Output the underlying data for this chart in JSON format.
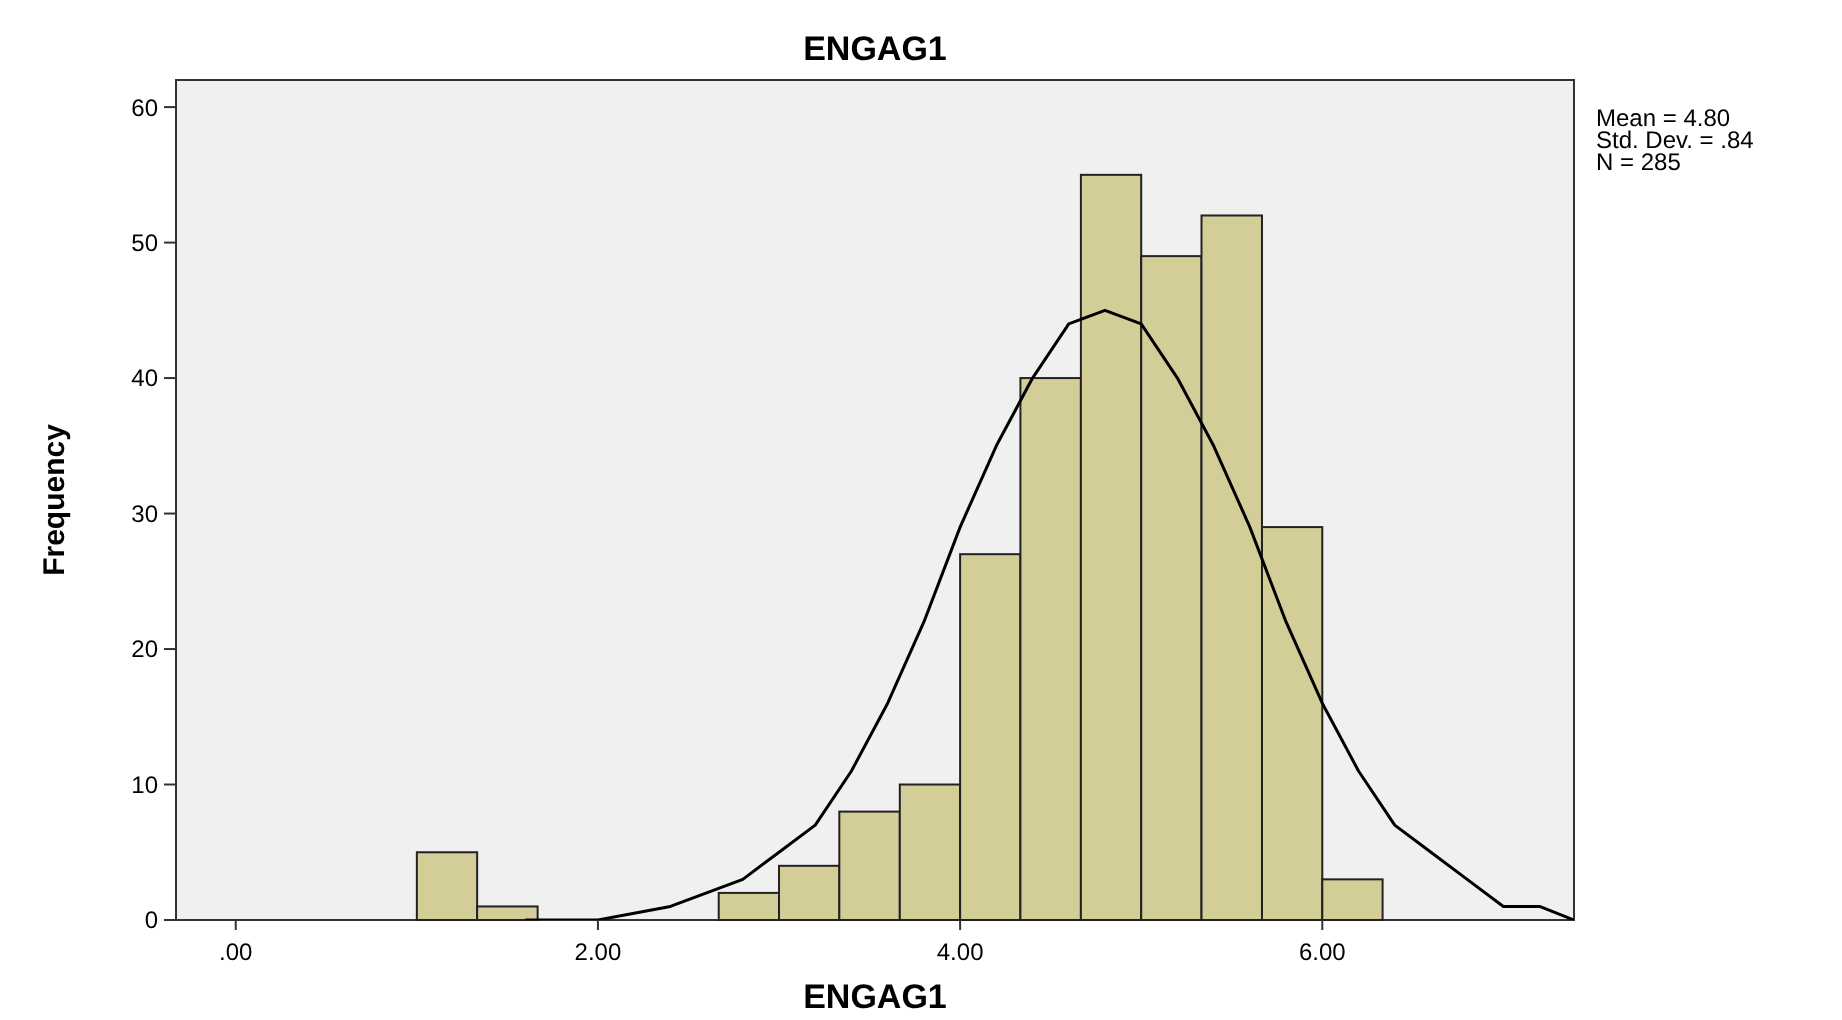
{
  "chart_data": {
    "type": "histogram",
    "title": "ENGAG1",
    "xlabel": "ENGAG1",
    "ylabel": "Frequency",
    "bins": [
      1.0,
      1.333,
      1.667,
      2.0,
      2.333,
      2.667,
      3.0,
      3.333,
      3.667,
      4.0,
      4.333,
      4.667,
      5.0,
      5.333,
      5.667,
      6.0,
      6.333
    ],
    "values": [
      5,
      1,
      0,
      0,
      0,
      2,
      4,
      8,
      10,
      27,
      40,
      55,
      49,
      52,
      29,
      3
    ],
    "color": "#d3ce98",
    "series": [
      {
        "type": "line",
        "color": "#000000",
        "x": [
          1.6,
          2.0,
          2.4,
          2.8,
          3.0,
          3.2,
          3.4,
          3.6,
          3.8,
          4.0,
          4.2,
          4.4,
          4.6,
          4.8,
          5.0,
          5.2,
          5.4,
          5.6,
          5.8,
          6.0,
          6.2,
          6.4,
          6.6,
          6.8,
          7.0,
          7.2,
          7.39
        ],
        "values": [
          0,
          0,
          1,
          3,
          5,
          7,
          11,
          16,
          22,
          29,
          35,
          40,
          44,
          45,
          44,
          40,
          35,
          29,
          22,
          16,
          11,
          7,
          5,
          3,
          1,
          1,
          0
        ]
      }
    ],
    "xlim": [
      -0.33,
      7.39
    ],
    "xticks": [
      {
        "value": 0,
        "label": ".00"
      },
      {
        "value": 2,
        "label": "2.00"
      },
      {
        "value": 4,
        "label": "4.00"
      },
      {
        "value": 6,
        "label": "6.00"
      }
    ],
    "ylim": [
      0,
      62
    ],
    "yticks": [
      0,
      10,
      20,
      30,
      40,
      50,
      60
    ],
    "annotations": [
      "Mean = 4.80",
      "Std. Dev. = .84",
      "N = 285"
    ]
  }
}
